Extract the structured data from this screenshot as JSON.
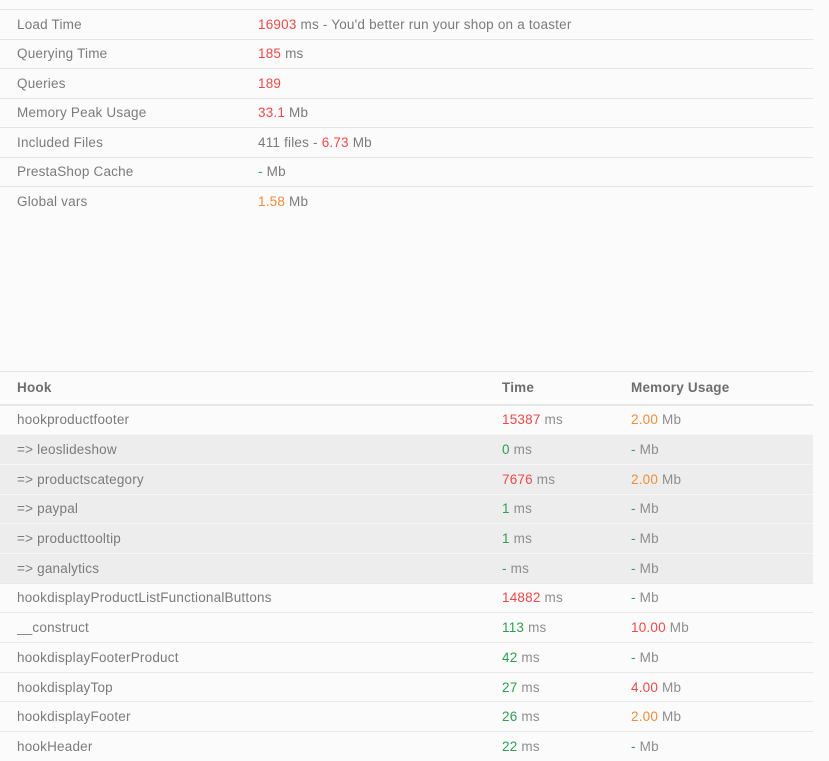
{
  "colors": {
    "red": "#ed4949",
    "orange": "#ef8d3c",
    "green": "#2f9e50",
    "grey": "#7b7b7b"
  },
  "summary": {
    "rows": [
      {
        "label": "Load Time",
        "parts": [
          {
            "text": "16903",
            "color": "red"
          },
          {
            "text": " ms - You'd better run your shop on a toaster",
            "color": "grey"
          }
        ]
      },
      {
        "label": "Querying Time",
        "parts": [
          {
            "text": "185",
            "color": "red"
          },
          {
            "text": " ms",
            "color": "grey"
          }
        ]
      },
      {
        "label": "Queries",
        "parts": [
          {
            "text": "189",
            "color": "red"
          }
        ]
      },
      {
        "label": "Memory Peak Usage",
        "parts": [
          {
            "text": "33.1",
            "color": "red"
          },
          {
            "text": " Mb",
            "color": "grey"
          }
        ]
      },
      {
        "label": "Included Files",
        "parts": [
          {
            "text": "411 files - ",
            "color": "grey"
          },
          {
            "text": "6.73",
            "color": "red"
          },
          {
            "text": " Mb",
            "color": "grey"
          }
        ]
      },
      {
        "label": "PrestaShop Cache",
        "parts": [
          {
            "text": "-",
            "color": "green"
          },
          {
            "text": " Mb",
            "color": "grey"
          }
        ]
      },
      {
        "label": "Global vars",
        "parts": [
          {
            "text": "1.58",
            "color": "orange"
          },
          {
            "text": " Mb",
            "color": "grey"
          }
        ]
      }
    ]
  },
  "hooks": {
    "headers": {
      "hook": "Hook",
      "time": "Time",
      "memory": "Memory Usage"
    },
    "units": {
      "time": " ms",
      "memory": " Mb"
    },
    "rows": [
      {
        "name": "hookproductfooter",
        "time": "15387",
        "time_color": "red",
        "memory": "2.00",
        "memory_color": "orange"
      },
      {
        "name": "=> leoslideshow",
        "time": "0",
        "time_color": "green",
        "memory": "-",
        "memory_color": "green"
      },
      {
        "name": "=> productscategory",
        "time": "7676",
        "time_color": "red",
        "memory": "2.00",
        "memory_color": "orange"
      },
      {
        "name": "=> paypal",
        "time": "1",
        "time_color": "green",
        "memory": "-",
        "memory_color": "green"
      },
      {
        "name": "=> producttooltip",
        "time": "1",
        "time_color": "green",
        "memory": "-",
        "memory_color": "green"
      },
      {
        "name": "=> ganalytics",
        "time": "-",
        "time_color": "green",
        "memory": "-",
        "memory_color": "green"
      },
      {
        "name": "hookdisplayProductListFunctionalButtons",
        "time": "14882",
        "time_color": "red",
        "memory": "-",
        "memory_color": "green"
      },
      {
        "name": "__construct",
        "time": "113",
        "time_color": "green",
        "memory": "10.00",
        "memory_color": "red"
      },
      {
        "name": "hookdisplayFooterProduct",
        "time": "42",
        "time_color": "green",
        "memory": "-",
        "memory_color": "green"
      },
      {
        "name": "hookdisplayTop",
        "time": "27",
        "time_color": "green",
        "memory": "4.00",
        "memory_color": "red"
      },
      {
        "name": "hookdisplayFooter",
        "time": "26",
        "time_color": "green",
        "memory": "2.00",
        "memory_color": "orange"
      },
      {
        "name": "hookHeader",
        "time": "22",
        "time_color": "green",
        "memory": "-",
        "memory_color": "green"
      }
    ]
  }
}
